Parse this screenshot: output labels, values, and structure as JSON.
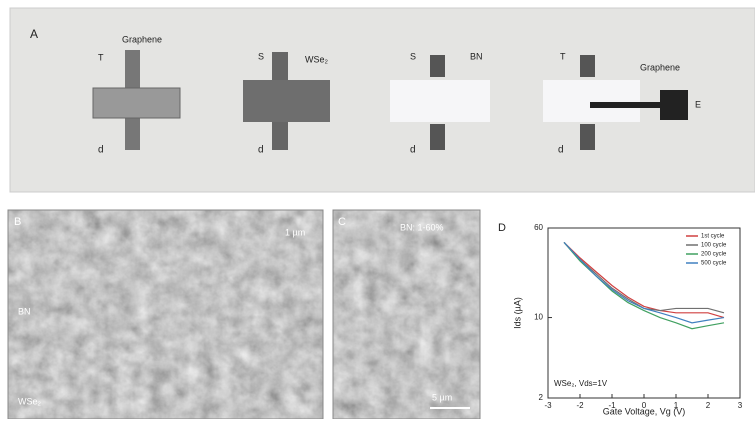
{
  "panel_a": {
    "letter": "A",
    "devices": [
      {
        "top": "T",
        "material": "Graphene",
        "bottom": "d"
      },
      {
        "top": "S",
        "material": "WSe₂",
        "bottom": "d"
      },
      {
        "top": "S",
        "material": "BN",
        "bottom": "d"
      },
      {
        "top": "T",
        "material": "Graphene",
        "side": "E",
        "bottom": "d"
      }
    ]
  },
  "panel_b": {
    "letter": "B",
    "scale": "1 µm",
    "upper_label": "BN",
    "lower_label": "WSe₂"
  },
  "panel_c": {
    "letter": "C",
    "label": "BN: 1-60%",
    "scale": "5 µm"
  },
  "chart_data": {
    "type": "line",
    "letter": "D",
    "x_label": "Gate Voltage, Vg (V)",
    "y_label": "Ids (µA)",
    "annotation": "WSe₂, Vds=1V",
    "x": [
      -2.5,
      -2,
      -1.5,
      -1,
      -0.5,
      0,
      0.5,
      1,
      1.5,
      2,
      2.5
    ],
    "series": [
      {
        "name": "1st cycle",
        "color": "#d04040",
        "values": [
          45,
          33,
          25,
          19,
          15,
          12.5,
          11.5,
          11,
          11,
          11,
          10
        ]
      },
      {
        "name": "100 cycle",
        "color": "#707070",
        "values": [
          45,
          32,
          24,
          18,
          14.5,
          12,
          11.5,
          12,
          12,
          12,
          11
        ]
      },
      {
        "name": "200 cycle",
        "color": "#40a060",
        "values": [
          45,
          31,
          23,
          17,
          13.5,
          11.5,
          10,
          9,
          8,
          8.5,
          9
        ]
      },
      {
        "name": "500 cycle",
        "color": "#4080c0",
        "values": [
          45,
          32,
          23,
          17.5,
          14,
          12,
          11,
          10,
          9,
          9.5,
          10
        ]
      }
    ],
    "xlim": [
      -3,
      3
    ],
    "xticks": [
      -3,
      -2,
      -1,
      0,
      1,
      2,
      3
    ],
    "ylim": [
      2,
      60
    ],
    "yticks": [
      2,
      10,
      60
    ],
    "yscale": "log"
  }
}
